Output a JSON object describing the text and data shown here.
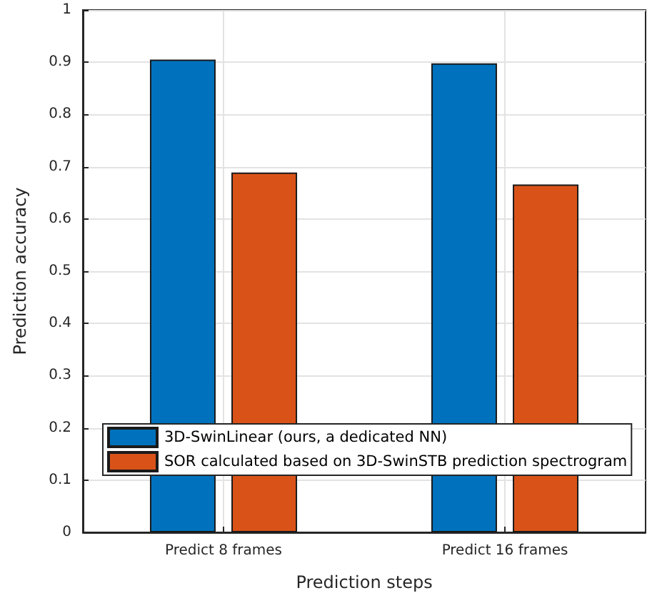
{
  "chart_data": {
    "type": "bar",
    "xlabel": "Prediction steps",
    "ylabel": "Prediction accuracy",
    "categories": [
      "Predict 8 frames",
      "Predict 16 frames"
    ],
    "series": [
      {
        "name": "3D-SwinLinear (ours, a dedicated NN)",
        "color": "#0072bd",
        "values": [
          0.905,
          0.898
        ]
      },
      {
        "name": "SOR calculated based on 3D-SwinSTB prediction spectrogram",
        "color": "#d95319",
        "values": [
          0.689,
          0.666
        ]
      }
    ],
    "ylim": [
      0,
      1
    ],
    "yticks": [
      0,
      0.1,
      0.2,
      0.3,
      0.4,
      0.5,
      0.6,
      0.7,
      0.8,
      0.9,
      1
    ],
    "grid": true,
    "legend": "bottom left"
  }
}
